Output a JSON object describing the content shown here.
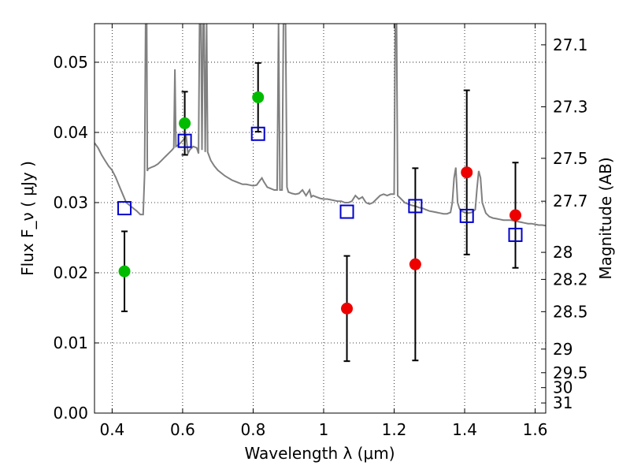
{
  "chart_data": {
    "type": "scatter",
    "xlabel": "Wavelength  λ (μm)",
    "ylabel": "Flux  F_ν  ( μJy )",
    "y2label": "Magnitude (AB)",
    "xlim": [
      0.35,
      1.63
    ],
    "ylim": [
      0.0,
      0.0555
    ],
    "grid": true,
    "x_ticks": [
      0.4,
      0.6,
      0.8,
      1.0,
      1.2,
      1.4,
      1.6
    ],
    "x_tick_labels": [
      "0.4",
      "0.6",
      "0.8",
      "1",
      "1.2",
      "1.4",
      "1.6"
    ],
    "y_ticks": [
      0.0,
      0.01,
      0.02,
      0.03,
      0.04,
      0.05
    ],
    "y_tick_labels": [
      "0.00",
      "0.01",
      "0.02",
      "0.03",
      "0.04",
      "0.05"
    ],
    "mag_ticks": [
      27.1,
      27.3,
      27.5,
      27.7,
      28,
      28.2,
      28.5,
      29,
      29.5,
      30,
      31
    ],
    "mag_tick_labels": [
      "27.1",
      "27.3",
      "27.5",
      "27.7",
      "28",
      "28.2",
      "28.5",
      "29",
      "29.5",
      "30",
      "31"
    ],
    "colors": {
      "template": "#808080",
      "green": "#00bb00",
      "red": "#ee0000",
      "model": "#0000cc",
      "errorbar": "#000000"
    },
    "series": [
      {
        "marker": "circle",
        "color": "#00bb00",
        "points": [
          {
            "x": 0.435,
            "y": 0.0202,
            "err": 0.0057
          },
          {
            "x": 0.606,
            "y": 0.0413,
            "err": 0.0045
          },
          {
            "x": 0.814,
            "y": 0.045,
            "err": 0.0049
          }
        ]
      },
      {
        "marker": "circle",
        "color": "#ee0000",
        "points": [
          {
            "x": 1.066,
            "y": 0.0149,
            "err": 0.0075
          },
          {
            "x": 1.26,
            "y": 0.0212,
            "err": 0.0137
          },
          {
            "x": 1.406,
            "y": 0.0343,
            "err": 0.0117
          },
          {
            "x": 1.544,
            "y": 0.0282,
            "err": 0.0075
          }
        ]
      },
      {
        "marker": "open-square",
        "color": "#0000cc",
        "points": [
          {
            "x": 0.435,
            "y": 0.0292
          },
          {
            "x": 0.606,
            "y": 0.0388
          },
          {
            "x": 0.814,
            "y": 0.0398
          },
          {
            "x": 1.066,
            "y": 0.0287
          },
          {
            "x": 1.26,
            "y": 0.0295
          },
          {
            "x": 1.406,
            "y": 0.0281
          },
          {
            "x": 1.544,
            "y": 0.0254
          }
        ]
      }
    ],
    "template_spectrum": [
      [
        0.35,
        0.0385
      ],
      [
        0.36,
        0.0378
      ],
      [
        0.37,
        0.0368
      ],
      [
        0.38,
        0.036
      ],
      [
        0.39,
        0.0352
      ],
      [
        0.4,
        0.0346
      ],
      [
        0.41,
        0.0336
      ],
      [
        0.42,
        0.0324
      ],
      [
        0.43,
        0.0312
      ],
      [
        0.44,
        0.03
      ],
      [
        0.45,
        0.0296
      ],
      [
        0.46,
        0.0292
      ],
      [
        0.47,
        0.0288
      ],
      [
        0.48,
        0.0283
      ],
      [
        0.488,
        0.0283
      ],
      [
        0.492,
        0.034
      ],
      [
        0.495,
        0.0555
      ],
      [
        0.498,
        0.0555
      ],
      [
        0.5,
        0.0345
      ],
      [
        0.502,
        0.0348
      ],
      [
        0.51,
        0.035
      ],
      [
        0.52,
        0.0352
      ],
      [
        0.53,
        0.0355
      ],
      [
        0.54,
        0.036
      ],
      [
        0.55,
        0.0365
      ],
      [
        0.56,
        0.037
      ],
      [
        0.57,
        0.0375
      ],
      [
        0.575,
        0.0378
      ],
      [
        0.578,
        0.049
      ],
      [
        0.581,
        0.038
      ],
      [
        0.59,
        0.0383
      ],
      [
        0.6,
        0.0388
      ],
      [
        0.61,
        0.0395
      ],
      [
        0.615,
        0.037
      ],
      [
        0.62,
        0.0375
      ],
      [
        0.63,
        0.038
      ],
      [
        0.64,
        0.0378
      ],
      [
        0.645,
        0.037
      ],
      [
        0.648,
        0.0555
      ],
      [
        0.652,
        0.0555
      ],
      [
        0.655,
        0.0375
      ],
      [
        0.658,
        0.0555
      ],
      [
        0.661,
        0.0555
      ],
      [
        0.664,
        0.0372
      ],
      [
        0.668,
        0.0555
      ],
      [
        0.671,
        0.0372
      ],
      [
        0.68,
        0.036
      ],
      [
        0.69,
        0.0352
      ],
      [
        0.7,
        0.0346
      ],
      [
        0.71,
        0.0342
      ],
      [
        0.72,
        0.0338
      ],
      [
        0.73,
        0.0335
      ],
      [
        0.74,
        0.0332
      ],
      [
        0.75,
        0.033
      ],
      [
        0.76,
        0.0328
      ],
      [
        0.77,
        0.0326
      ],
      [
        0.78,
        0.0326
      ],
      [
        0.79,
        0.0325
      ],
      [
        0.8,
        0.0324
      ],
      [
        0.81,
        0.0325
      ],
      [
        0.82,
        0.0332
      ],
      [
        0.825,
        0.0335
      ],
      [
        0.83,
        0.033
      ],
      [
        0.84,
        0.0322
      ],
      [
        0.85,
        0.032
      ],
      [
        0.86,
        0.0318
      ],
      [
        0.868,
        0.0318
      ],
      [
        0.872,
        0.0555
      ],
      [
        0.876,
        0.0318
      ],
      [
        0.882,
        0.0318
      ],
      [
        0.886,
        0.0555
      ],
      [
        0.892,
        0.0555
      ],
      [
        0.896,
        0.0322
      ],
      [
        0.9,
        0.0315
      ],
      [
        0.91,
        0.0313
      ],
      [
        0.92,
        0.0312
      ],
      [
        0.93,
        0.0313
      ],
      [
        0.94,
        0.0318
      ],
      [
        0.95,
        0.031
      ],
      [
        0.96,
        0.0318
      ],
      [
        0.965,
        0.0308
      ],
      [
        0.97,
        0.031
      ],
      [
        0.98,
        0.0308
      ],
      [
        0.99,
        0.0306
      ],
      [
        1.0,
        0.0305
      ],
      [
        1.01,
        0.0305
      ],
      [
        1.02,
        0.0304
      ],
      [
        1.03,
        0.0303
      ],
      [
        1.04,
        0.0302
      ],
      [
        1.05,
        0.0302
      ],
      [
        1.06,
        0.03
      ],
      [
        1.07,
        0.03
      ],
      [
        1.08,
        0.0302
      ],
      [
        1.09,
        0.031
      ],
      [
        1.1,
        0.0305
      ],
      [
        1.11,
        0.0308
      ],
      [
        1.12,
        0.03
      ],
      [
        1.13,
        0.0298
      ],
      [
        1.14,
        0.03
      ],
      [
        1.15,
        0.0305
      ],
      [
        1.16,
        0.031
      ],
      [
        1.17,
        0.0312
      ],
      [
        1.18,
        0.031
      ],
      [
        1.19,
        0.0312
      ],
      [
        1.2,
        0.0312
      ],
      [
        1.203,
        0.0555
      ],
      [
        1.207,
        0.0555
      ],
      [
        1.21,
        0.031
      ],
      [
        1.22,
        0.0305
      ],
      [
        1.23,
        0.03
      ],
      [
        1.24,
        0.0298
      ],
      [
        1.25,
        0.0296
      ],
      [
        1.26,
        0.0295
      ],
      [
        1.27,
        0.0293
      ],
      [
        1.28,
        0.0292
      ],
      [
        1.29,
        0.029
      ],
      [
        1.3,
        0.0288
      ],
      [
        1.31,
        0.0287
      ],
      [
        1.32,
        0.0286
      ],
      [
        1.33,
        0.0285
      ],
      [
        1.34,
        0.0284
      ],
      [
        1.35,
        0.0284
      ],
      [
        1.36,
        0.0286
      ],
      [
        1.365,
        0.03
      ],
      [
        1.37,
        0.0335
      ],
      [
        1.375,
        0.035
      ],
      [
        1.38,
        0.03
      ],
      [
        1.385,
        0.0292
      ],
      [
        1.39,
        0.0288
      ],
      [
        1.4,
        0.0286
      ],
      [
        1.41,
        0.0285
      ],
      [
        1.42,
        0.0286
      ],
      [
        1.43,
        0.029
      ],
      [
        1.435,
        0.032
      ],
      [
        1.44,
        0.0345
      ],
      [
        1.445,
        0.0335
      ],
      [
        1.45,
        0.03
      ],
      [
        1.46,
        0.0285
      ],
      [
        1.47,
        0.028
      ],
      [
        1.48,
        0.0278
      ],
      [
        1.49,
        0.0277
      ],
      [
        1.5,
        0.0276
      ],
      [
        1.51,
        0.0275
      ],
      [
        1.52,
        0.0275
      ],
      [
        1.53,
        0.0275
      ],
      [
        1.54,
        0.0274
      ],
      [
        1.55,
        0.0273
      ],
      [
        1.56,
        0.0272
      ],
      [
        1.57,
        0.0271
      ],
      [
        1.58,
        0.027
      ],
      [
        1.59,
        0.027
      ],
      [
        1.6,
        0.0269
      ],
      [
        1.61,
        0.0268
      ],
      [
        1.62,
        0.0268
      ],
      [
        1.63,
        0.0267
      ]
    ]
  }
}
